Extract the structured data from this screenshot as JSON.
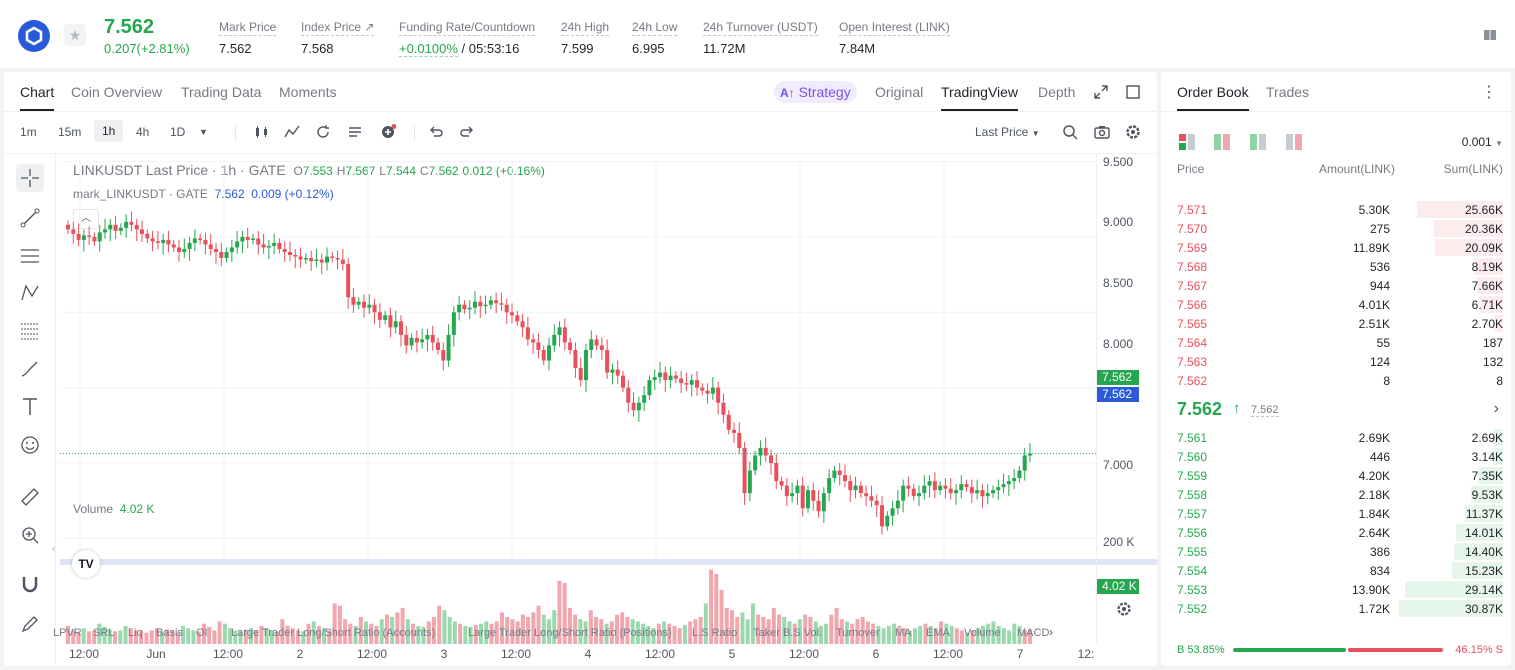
{
  "header": {
    "price": "7.562",
    "change": "0.207(+2.81%)",
    "stats": [
      {
        "label": "Mark Price",
        "value": "7.562"
      },
      {
        "label": "Index Price ↗",
        "value": "7.568"
      },
      {
        "label": "Funding Rate/Countdown",
        "value_green": "+0.0100%",
        "value": "/ 05:53:16"
      },
      {
        "label": "24h High",
        "value": "7.599"
      },
      {
        "label": "24h Low",
        "value": "6.995"
      },
      {
        "label": "24h Turnover (USDT)",
        "value": "11.72M"
      },
      {
        "label": "Open Interest (LINK)",
        "value": "7.84M"
      }
    ]
  },
  "chart_tabs": [
    "Chart",
    "Coin Overview",
    "Trading Data",
    "Moments"
  ],
  "view_tabs": {
    "strategy": "Strategy",
    "original": "Original",
    "tradingview": "TradingView",
    "depth": "Depth"
  },
  "timeframes": [
    "1m",
    "15m",
    "1h",
    "4h",
    "1D"
  ],
  "price_type": "Last Price",
  "legend": {
    "symbol": "LINKUSDT Last Price · 1h · GATE",
    "o": "7.553",
    "h": "7.567",
    "l": "7.544",
    "c": "7.562",
    "chg": "0.012 (+0.16%)",
    "mark_label": "mark_LINKUSDT · GATE",
    "mark_val": "7.562",
    "mark_chg": "0.009",
    "mark_pct": "(+0.12%)"
  },
  "volume": {
    "label": "Volume",
    "value": "4.02 K"
  },
  "yaxis": [
    "9.500",
    "9.000",
    "8.500",
    "8.000",
    "7.500",
    "7.000"
  ],
  "price_tags": {
    "last": "7.562",
    "mark": "7.562",
    "vol": "4.02 K",
    "vol_axis": "200 K"
  },
  "xaxis": [
    "12:00",
    "Jun",
    "12:00",
    "2",
    "12:00",
    "3",
    "12:00",
    "4",
    "12:00",
    "5",
    "12:00",
    "6",
    "12:00",
    "7",
    "12:"
  ],
  "indicators": [
    "LPVR",
    "SRL",
    "Liq",
    "Basis",
    "OI",
    "Large Trader Long/Short Ratio (Accounts)",
    "Large Trader Long/Short Ratio (Positions)",
    "L.S Ratio",
    "Taker B.S Vol.",
    "Turnover",
    "MA",
    "EMA",
    "Volume",
    "MACD"
  ],
  "chart_data": {
    "type": "candlestick",
    "price_range": [
      6.85,
      9.55
    ],
    "closes": [
      9.05,
      9.02,
      8.98,
      9.01,
      9.0,
      8.97,
      9.03,
      9.05,
      9.08,
      9.04,
      9.06,
      9.1,
      9.08,
      9.05,
      9.02,
      8.99,
      8.97,
      8.96,
      8.98,
      8.95,
      8.93,
      8.9,
      8.92,
      8.96,
      8.99,
      8.98,
      8.95,
      8.92,
      8.9,
      8.86,
      8.9,
      8.93,
      8.97,
      9.0,
      8.98,
      8.99,
      8.95,
      8.93,
      8.94,
      8.96,
      8.92,
      8.9,
      8.88,
      8.87,
      8.85,
      8.86,
      8.84,
      8.85,
      8.83,
      8.87,
      8.86,
      8.85,
      8.82,
      8.6,
      8.55,
      8.57,
      8.53,
      8.55,
      8.5,
      8.45,
      8.48,
      8.4,
      8.44,
      8.35,
      8.28,
      8.33,
      8.3,
      8.32,
      8.35,
      8.3,
      8.25,
      8.18,
      8.35,
      8.5,
      8.55,
      8.52,
      8.53,
      8.57,
      8.54,
      8.55,
      8.58,
      8.56,
      8.55,
      8.5,
      8.48,
      8.44,
      8.4,
      8.32,
      8.3,
      8.25,
      8.18,
      8.28,
      8.35,
      8.4,
      8.3,
      8.25,
      8.13,
      8.05,
      8.25,
      8.32,
      8.28,
      8.25,
      8.1,
      8.12,
      8.08,
      8.0,
      7.9,
      7.85,
      7.9,
      7.95,
      8.05,
      8.07,
      8.1,
      8.05,
      8.08,
      8.06,
      8.03,
      8.02,
      8.05,
      8.0,
      7.98,
      7.96,
      8.0,
      7.9,
      7.82,
      7.72,
      7.7,
      7.6,
      7.3,
      7.45,
      7.55,
      7.6,
      7.55,
      7.5,
      7.38,
      7.35,
      7.28,
      7.3,
      7.35,
      7.2,
      7.32,
      7.25,
      7.18,
      7.3,
      7.4,
      7.45,
      7.42,
      7.38,
      7.32,
      7.35,
      7.3,
      7.28,
      7.25,
      7.22,
      7.08,
      7.15,
      7.2,
      7.25,
      7.35,
      7.33,
      7.28,
      7.3,
      7.35,
      7.38,
      7.32,
      7.35,
      7.33,
      7.3,
      7.32,
      7.36,
      7.34,
      7.3,
      7.32,
      7.28,
      7.3,
      7.32,
      7.34,
      7.36,
      7.38,
      7.4,
      7.45,
      7.55,
      7.562
    ],
    "volumes": [
      40,
      30,
      25,
      35,
      28,
      30,
      45,
      38,
      32,
      28,
      30,
      40,
      35,
      30,
      28,
      25,
      30,
      35,
      28,
      32,
      30,
      25,
      40,
      35,
      30,
      28,
      45,
      38,
      30,
      50,
      45,
      35,
      30,
      28,
      32,
      35,
      30,
      40,
      35,
      30,
      28,
      55,
      40,
      35,
      30,
      28,
      45,
      50,
      40,
      35,
      30,
      90,
      85,
      55,
      45,
      40,
      60,
      50,
      45,
      40,
      55,
      65,
      60,
      70,
      80,
      55,
      45,
      40,
      38,
      50,
      60,
      85,
      75,
      60,
      50,
      45,
      40,
      38,
      42,
      45,
      50,
      45,
      50,
      70,
      60,
      55,
      50,
      65,
      60,
      70,
      85,
      65,
      55,
      75,
      140,
      135,
      80,
      65,
      55,
      50,
      75,
      60,
      55,
      45,
      50,
      65,
      70,
      60,
      55,
      50,
      45,
      40,
      35,
      45,
      50,
      45,
      40,
      35,
      42,
      50,
      55,
      60,
      90,
      165,
      155,
      120,
      80,
      75,
      60,
      70,
      55,
      90,
      65,
      60,
      55,
      80,
      65,
      60,
      50,
      45,
      55,
      65,
      60,
      50,
      40,
      45,
      65,
      80,
      55,
      50,
      45,
      55,
      60,
      50,
      45,
      40,
      35,
      40,
      45,
      40,
      35,
      30,
      35,
      40,
      45,
      40,
      35,
      50,
      45,
      40,
      35,
      30,
      25,
      30,
      35,
      40,
      45,
      50,
      40,
      35,
      30,
      45,
      40,
      30,
      32
    ]
  },
  "orderbook": {
    "tabs": [
      "Order Book",
      "Trades"
    ],
    "precision": "0.001",
    "headers": {
      "price": "Price",
      "amount": "Amount(LINK)",
      "sum": "Sum(LINK)"
    },
    "asks": [
      {
        "p": "7.571",
        "a": "5.30K",
        "s": "25.66K",
        "w": 0.83
      },
      {
        "p": "7.570",
        "a": "275",
        "s": "20.36K",
        "w": 0.66
      },
      {
        "p": "7.569",
        "a": "11.89K",
        "s": "20.09K",
        "w": 0.65
      },
      {
        "p": "7.568",
        "a": "536",
        "s": "8.19K",
        "w": 0.27
      },
      {
        "p": "7.567",
        "a": "944",
        "s": "7.66K",
        "w": 0.25
      },
      {
        "p": "7.566",
        "a": "4.01K",
        "s": "6.71K",
        "w": 0.22
      },
      {
        "p": "7.565",
        "a": "2.51K",
        "s": "2.70K",
        "w": 0.09
      },
      {
        "p": "7.564",
        "a": "55",
        "s": "187",
        "w": 0.01
      },
      {
        "p": "7.563",
        "a": "124",
        "s": "132",
        "w": 0.01
      },
      {
        "p": "7.562",
        "a": "8",
        "s": "8",
        "w": 0.0
      }
    ],
    "mid": {
      "price": "7.562",
      "mark": "7.562"
    },
    "bids": [
      {
        "p": "7.561",
        "a": "2.69K",
        "s": "2.69K",
        "w": 0.09
      },
      {
        "p": "7.560",
        "a": "446",
        "s": "3.14K",
        "w": 0.1
      },
      {
        "p": "7.559",
        "a": "4.20K",
        "s": "7.35K",
        "w": 0.24
      },
      {
        "p": "7.558",
        "a": "2.18K",
        "s": "9.53K",
        "w": 0.31
      },
      {
        "p": "7.557",
        "a": "1.84K",
        "s": "11.37K",
        "w": 0.37
      },
      {
        "p": "7.556",
        "a": "2.64K",
        "s": "14.01K",
        "w": 0.45
      },
      {
        "p": "7.555",
        "a": "386",
        "s": "14.40K",
        "w": 0.47
      },
      {
        "p": "7.554",
        "a": "834",
        "s": "15.23K",
        "w": 0.49
      },
      {
        "p": "7.553",
        "a": "13.90K",
        "s": "29.14K",
        "w": 0.94
      },
      {
        "p": "7.552",
        "a": "1.72K",
        "s": "30.87K",
        "w": 1.0
      }
    ],
    "buy_ratio": "B 53.85%",
    "sell_ratio": "46.15% S",
    "buy_frac": 0.5385
  },
  "colors": {
    "up": "#25a750",
    "down": "#e8505b",
    "accent": "#2a5ada"
  }
}
